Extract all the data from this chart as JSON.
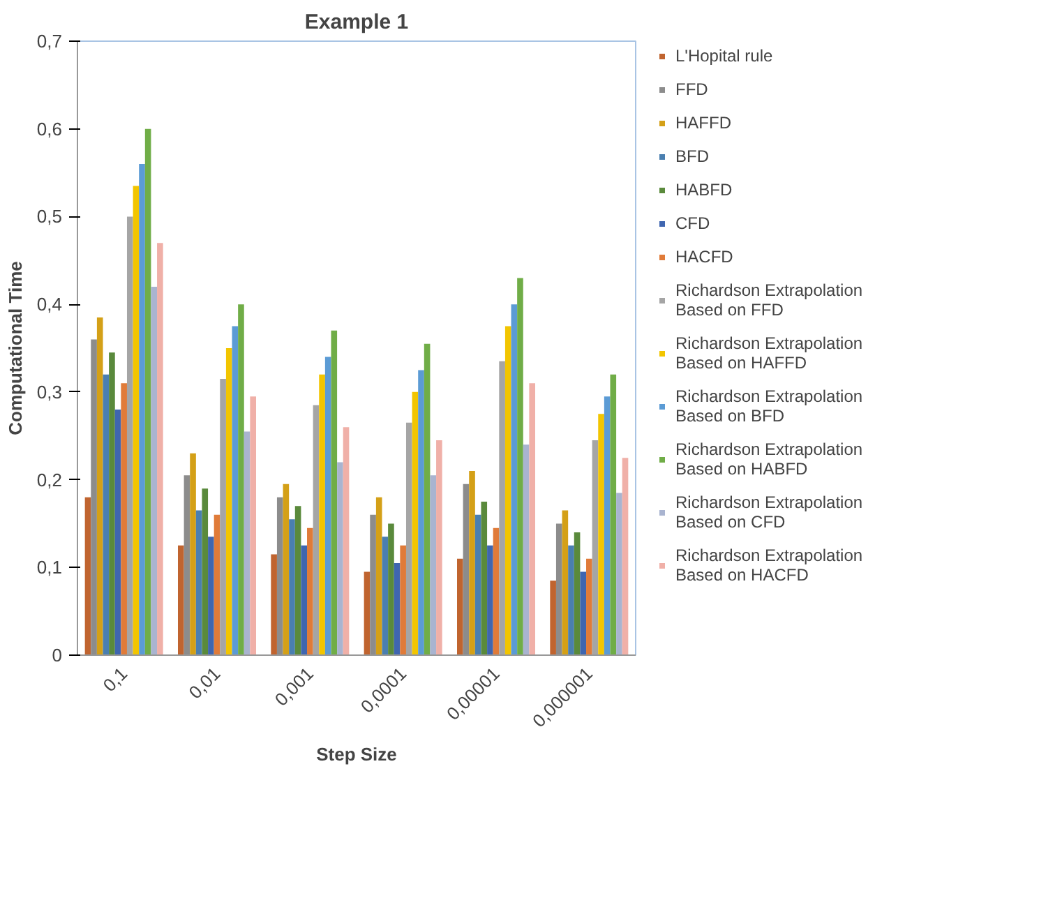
{
  "chart_data": {
    "type": "bar",
    "title": "Example 1",
    "xlabel": "Step Size",
    "ylabel": "Computational Time",
    "categories": [
      "0,1",
      "0,01",
      "0,001",
      "0,0001",
      "0,00001",
      "0,000001"
    ],
    "ylim": [
      0,
      0.7
    ],
    "yticks": [
      0,
      {
        "value": 0.1,
        "label": "0,1"
      },
      {
        "value": 0.2,
        "label": "0,2"
      },
      {
        "value": 0.3,
        "label": "0,3"
      },
      {
        "value": 0.4,
        "label": "0,4"
      },
      {
        "value": 0.5,
        "label": "0,5"
      },
      {
        "value": 0.6,
        "label": "0,6"
      },
      {
        "value": 0.7,
        "label": "0,7"
      }
    ],
    "grid": false,
    "legend": "right",
    "series": [
      {
        "name": "L'Hopital rule",
        "color": "#c0642f",
        "values": [
          0.18,
          0.125,
          0.115,
          0.095,
          0.11,
          0.085
        ]
      },
      {
        "name": "FFD",
        "color": "#8c8c8c",
        "values": [
          0.36,
          0.205,
          0.18,
          0.16,
          0.195,
          0.15
        ]
      },
      {
        "name": "HAFFD",
        "color": "#d4a017",
        "values": [
          0.385,
          0.23,
          0.195,
          0.18,
          0.21,
          0.165
        ]
      },
      {
        "name": "BFD",
        "color": "#4a7fb0",
        "values": [
          0.32,
          0.165,
          0.155,
          0.135,
          0.16,
          0.125
        ]
      },
      {
        "name": "HABFD",
        "color": "#5a8a3c",
        "values": [
          0.345,
          0.19,
          0.17,
          0.15,
          0.175,
          0.14
        ]
      },
      {
        "name": "CFD",
        "color": "#3f66b0",
        "values": [
          0.28,
          0.135,
          0.125,
          0.105,
          0.125,
          0.095
        ]
      },
      {
        "name": "HACFD",
        "color": "#e07b39",
        "values": [
          0.31,
          0.16,
          0.145,
          0.125,
          0.145,
          0.11
        ]
      },
      {
        "name": "Richardson Extrapolation Based on FFD",
        "color": "#a5a5a5",
        "values": [
          0.5,
          0.315,
          0.285,
          0.265,
          0.335,
          0.245
        ]
      },
      {
        "name": "Richardson Extrapolation Based on HAFFD",
        "color": "#f2c500",
        "values": [
          0.535,
          0.35,
          0.32,
          0.3,
          0.375,
          0.275
        ]
      },
      {
        "name": "Richardson Extrapolation Based on BFD",
        "color": "#5b9bd5",
        "values": [
          0.56,
          0.375,
          0.34,
          0.325,
          0.4,
          0.295
        ]
      },
      {
        "name": "Richardson Extrapolation Based on HABFD",
        "color": "#70ad47",
        "values": [
          0.6,
          0.4,
          0.37,
          0.355,
          0.43,
          0.32
        ]
      },
      {
        "name": "Richardson Extrapolation Based on CFD",
        "color": "#a9b4d0",
        "values": [
          0.42,
          0.255,
          0.22,
          0.205,
          0.24,
          0.185
        ]
      },
      {
        "name": "Richardson Extrapolation Based on HACFD",
        "color": "#f0b0a8",
        "values": [
          0.47,
          0.295,
          0.26,
          0.245,
          0.31,
          0.225
        ]
      }
    ]
  }
}
